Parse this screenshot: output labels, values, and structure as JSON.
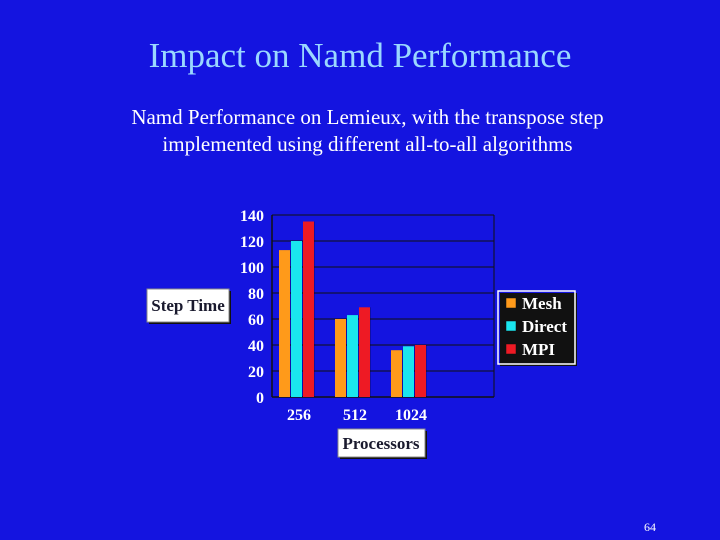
{
  "slide": {
    "title": "Impact on Namd Performance",
    "subtitle_line1": "Namd Performance on Lemieux, with the transpose step",
    "subtitle_line2": "implemented using different all-to-all algorithms",
    "page_number": "64",
    "background_color": "#1414e0"
  },
  "chart_data": {
    "type": "bar",
    "categories": [
      "256",
      "512",
      "1024"
    ],
    "series": [
      {
        "name": "Mesh",
        "color": "#ff9a1a",
        "values": [
          113,
          60,
          36
        ]
      },
      {
        "name": "Direct",
        "color": "#1ae6ee",
        "values": [
          120,
          63,
          39
        ]
      },
      {
        "name": "MPI",
        "color": "#ee1a24",
        "values": [
          135,
          69,
          40
        ]
      }
    ],
    "legend_labels": [
      "Mesh",
      "Direct",
      "MPI"
    ],
    "xlabel": "Processors",
    "ylabel": "Step Time",
    "ylim": [
      0,
      140
    ],
    "yticks": [
      "0",
      "20",
      "40",
      "60",
      "80",
      "100",
      "120",
      "140"
    ],
    "grid": true,
    "legend_position": "right"
  }
}
